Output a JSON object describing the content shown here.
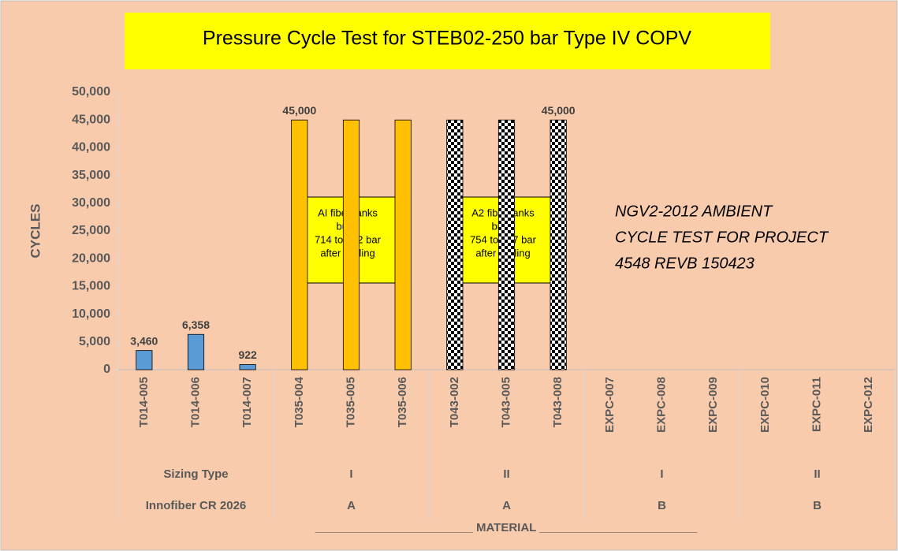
{
  "chart_data": {
    "type": "bar",
    "title": "Pressure Cycle Test for STEB02-250 bar Type IV COPV",
    "y_label": "CYCLES",
    "x_label": "________________________ MATERIAL ________________________",
    "categories": [
      "T014-005",
      "T014-006",
      "T014-007",
      "T035-004",
      "T035-005",
      "T035-006",
      "T043-002",
      "T043-005",
      "T043-008",
      "EXPC-007",
      "EXPC-008",
      "EXPC-009",
      "EXPC-010",
      "EXPC-011",
      "EXPC-012"
    ],
    "values": [
      3460,
      6358,
      922,
      45000,
      45000,
      45000,
      45000,
      45000,
      45000,
      null,
      null,
      null,
      null,
      null,
      null
    ],
    "value_labels": [
      "3,460",
      "6,358",
      "922",
      "45,000",
      null,
      null,
      null,
      null,
      "45,000",
      null,
      null,
      null,
      null,
      null,
      null
    ],
    "colors": [
      "#5b9bd5",
      "#5b9bd5",
      "#5b9bd5",
      "#ffc000",
      "#ffc000",
      "#ffc000",
      "#000000",
      "#000000",
      "#000000",
      null,
      null,
      null,
      null,
      null,
      null
    ],
    "patterns": [
      null,
      null,
      null,
      null,
      null,
      null,
      "checkerboard",
      "checkerboard",
      "checkerboard",
      null,
      null,
      null,
      null,
      null,
      null
    ],
    "sizing": [
      "Sizing Type",
      null,
      null,
      "I",
      null,
      null,
      "II",
      null,
      null,
      "I",
      null,
      null,
      "II",
      null,
      null
    ],
    "material": [
      "Innofiber CR 2026",
      null,
      null,
      "A",
      null,
      null,
      "A",
      null,
      null,
      "B",
      null,
      null,
      "B",
      null,
      null
    ],
    "ylim": [
      0,
      50000
    ],
    "yticks": [
      0,
      {
        "value": 5000,
        "label": "5,000"
      },
      {
        "value": 10000,
        "label": "10,000"
      },
      {
        "value": 15000,
        "label": "15,000"
      },
      {
        "value": 20000,
        "label": "20,000"
      },
      {
        "value": 25000,
        "label": "25,000"
      },
      {
        "value": 30000,
        "label": "30,000"
      },
      {
        "value": 35000,
        "label": "35,000"
      },
      {
        "value": 40000,
        "label": "40,000"
      },
      {
        "value": 45000,
        "label": "45,000"
      },
      {
        "value": 50000,
        "label": "50,000"
      }
    ],
    "grid": false,
    "annotations": [
      {
        "lines": [
          "AI fiber tanks",
          "burst",
          "714 to 732 bar",
          "after cycling"
        ]
      },
      {
        "lines": [
          "A2 fiber tanks",
          "burst",
          "754 to 797 bar",
          "after cycling"
        ]
      },
      {
        "lines": [
          "NGV2-2012 AMBIENT",
          "CYCLE TEST FOR PROJECT",
          "4548 REVB 150423"
        ]
      }
    ]
  }
}
